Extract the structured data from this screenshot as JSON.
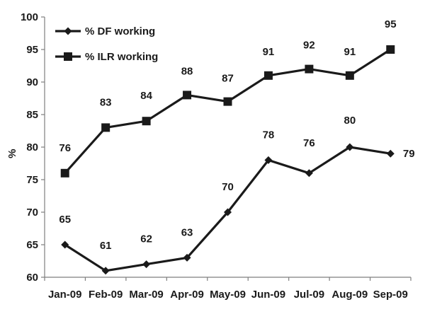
{
  "chart_data": {
    "type": "line",
    "title": "",
    "xlabel": "",
    "ylabel": "%",
    "ylim": [
      60,
      100
    ],
    "yticks": [
      60,
      65,
      70,
      75,
      80,
      85,
      90,
      95,
      100
    ],
    "grid": false,
    "legend_position": "top-left",
    "categories": [
      "Jan-09",
      "Feb-09",
      "Mar-09",
      "Apr-09",
      "May-09",
      "Jun-09",
      "Jul-09",
      "Aug-09",
      "Sep-09"
    ],
    "series": [
      {
        "name": "% DF working",
        "marker": "diamond",
        "values": [
          65,
          61,
          62,
          63,
          70,
          78,
          76,
          80,
          79
        ],
        "labels": [
          "65",
          "61",
          "62",
          "63",
          "70",
          "78",
          "76",
          "80",
          "79"
        ]
      },
      {
        "name": "% ILR working",
        "marker": "square",
        "values": [
          76,
          83,
          84,
          88,
          87,
          91,
          92,
          91,
          95
        ],
        "labels": [
          "76",
          "83",
          "84",
          "88",
          "87",
          "91",
          "92",
          "91",
          "95"
        ]
      }
    ],
    "colors": {
      "line": "#1a1a1a",
      "axis": "#7f7f7f"
    }
  }
}
